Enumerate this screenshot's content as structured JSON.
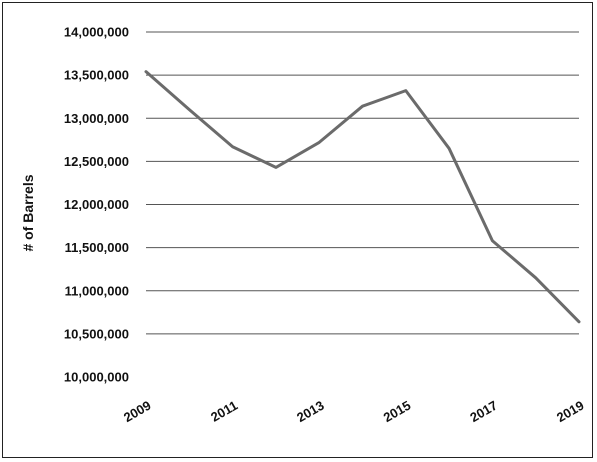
{
  "chart_data": {
    "type": "line",
    "title": "",
    "xlabel": "",
    "ylabel": "# of Barrels",
    "x": [
      2009,
      2010,
      2011,
      2012,
      2013,
      2014,
      2015,
      2016,
      2017,
      2018,
      2019
    ],
    "x_tick_labels": [
      "2009",
      "2011",
      "2013",
      "2015",
      "2017",
      "2019"
    ],
    "y_tick_labels": [
      "10,000,000",
      "10,500,000",
      "11,000,000",
      "11,500,000",
      "12,000,000",
      "12,500,000",
      "13,000,000",
      "13,500,000",
      "14,000,000"
    ],
    "ylim": [
      10000000,
      14000000
    ],
    "grid": true,
    "series": [
      {
        "values": [
          13540000,
          13100000,
          12670000,
          12430000,
          12720000,
          13140000,
          13320000,
          12650000,
          11580000,
          11150000,
          10640000
        ]
      }
    ],
    "colors": {
      "line": "#6b6b6b",
      "grid": "#555555"
    }
  }
}
